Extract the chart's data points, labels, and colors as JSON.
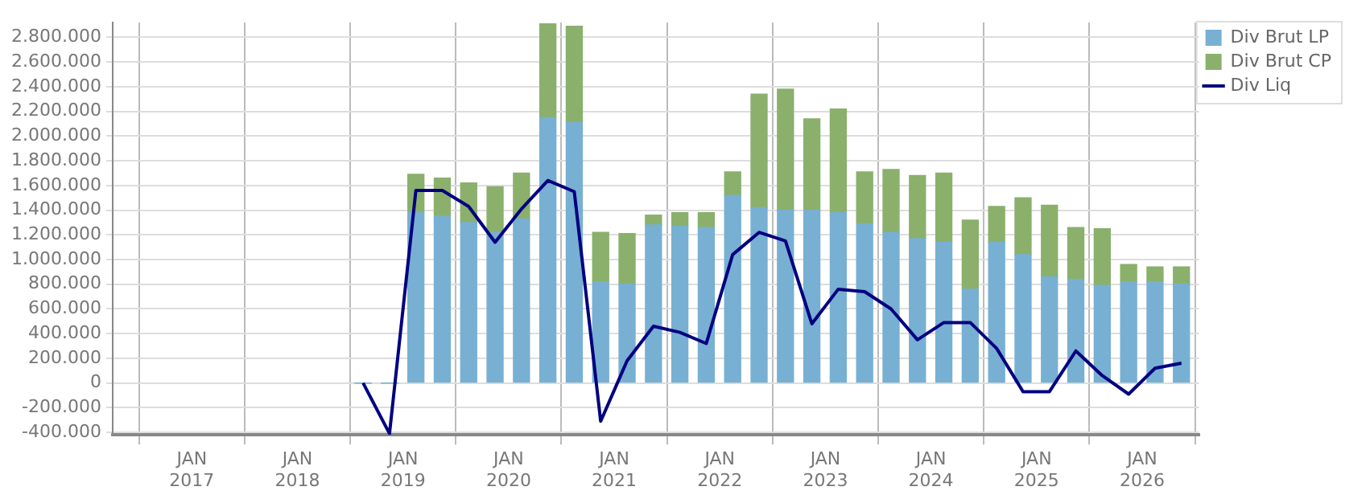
{
  "chart_data": {
    "type": "bar",
    "stacked": true,
    "legend": "top right",
    "grid": true,
    "x": [
      "2018-08-15",
      "2018-11-15",
      "2019-02-15",
      "2019-05-15",
      "2019-08-15",
      "2019-11-15",
      "2020-02-15",
      "2020-05-15",
      "2020-08-15",
      "2020-11-15",
      "2021-02-15",
      "2021-05-15",
      "2021-08-15",
      "2021-11-15",
      "2022-02-15",
      "2022-05-15",
      "2022-08-15",
      "2022-11-15",
      "2023-02-15",
      "2023-05-15",
      "2023-08-15",
      "2023-11-15",
      "2024-02-15",
      "2024-05-15",
      "2024-08-15",
      "2024-11-15",
      "2025-02-15",
      "2025-05-15",
      "2025-08-15",
      "2025-11-15",
      "2026-02-15",
      "2026-05-15"
    ],
    "series": [
      {
        "name": "Div Brut LP",
        "color": "#77b0d2",
        "values": [
          0,
          0,
          1380000,
          1350000,
          1300000,
          1220000,
          1330000,
          2150000,
          2110000,
          820000,
          800000,
          1280000,
          1270000,
          1260000,
          1520000,
          1420000,
          1400000,
          1400000,
          1380000,
          1290000,
          1220000,
          1170000,
          1140000,
          760000,
          1140000,
          1040000,
          860000,
          840000,
          790000,
          820000,
          820000,
          800000
        ]
      },
      {
        "name": "Div Brut CP",
        "color": "#8ab06c",
        "values": [
          0,
          0,
          310000,
          310000,
          320000,
          370000,
          370000,
          760000,
          780000,
          400000,
          410000,
          80000,
          110000,
          120000,
          190000,
          920000,
          980000,
          740000,
          840000,
          420000,
          510000,
          510000,
          560000,
          560000,
          290000,
          460000,
          580000,
          420000,
          460000,
          140000,
          120000,
          140000
        ]
      },
      {
        "name": "Div Liq",
        "type": "line",
        "color": "#000080",
        "marker": "none",
        "values": [
          0,
          -410000,
          1560000,
          1560000,
          1430000,
          1140000,
          1410000,
          1640000,
          1550000,
          -310000,
          180000,
          460000,
          410000,
          320000,
          1040000,
          1220000,
          1150000,
          480000,
          760000,
          740000,
          600000,
          350000,
          490000,
          490000,
          280000,
          -70000,
          -70000,
          260000,
          60000,
          -90000,
          120000,
          160000
        ]
      }
    ],
    "xlim": [
      "2016-04-01",
      "2026-07-15"
    ],
    "xticks": [
      {
        "value": "2017-01",
        "label": "JAN 2017"
      },
      {
        "value": "2018-01",
        "label": "JAN 2018"
      },
      {
        "value": "2019-01",
        "label": "JAN 2019"
      },
      {
        "value": "2020-01",
        "label": "JAN 2020"
      },
      {
        "value": "2021-01",
        "label": "JAN 2021"
      },
      {
        "value": "2022-01",
        "label": "JAN 2022"
      },
      {
        "value": "2023-01",
        "label": "JAN 2023"
      },
      {
        "value": "2024-01",
        "label": "JAN 2024"
      },
      {
        "value": "2025-01",
        "label": "JAN 2025"
      },
      {
        "value": "2026-01",
        "label": "JAN 2026"
      }
    ],
    "ylim": [
      -420000,
      2920000
    ],
    "yticks": [
      {
        "value": -400000,
        "label": "-400.000"
      },
      {
        "value": -200000,
        "label": "-200.000"
      },
      {
        "value": 0,
        "label": "0"
      },
      {
        "value": 200000,
        "label": "200.000"
      },
      {
        "value": 400000,
        "label": "400.000"
      },
      {
        "value": 600000,
        "label": "600.000"
      },
      {
        "value": 800000,
        "label": "800.000"
      },
      {
        "value": 1000000,
        "label": "1.000.000"
      },
      {
        "value": 1200000,
        "label": "1.200.000"
      },
      {
        "value": 1400000,
        "label": "1.400.000"
      },
      {
        "value": 1600000,
        "label": "1.600.000"
      },
      {
        "value": 1800000,
        "label": "1.800.000"
      },
      {
        "value": 2000000,
        "label": "2.000.000"
      },
      {
        "value": 2200000,
        "label": "2.200.000"
      },
      {
        "value": 2400000,
        "label": "2.400.000"
      },
      {
        "value": 2600000,
        "label": "2.600.000"
      },
      {
        "value": 2800000,
        "label": "2.800.000"
      }
    ]
  }
}
